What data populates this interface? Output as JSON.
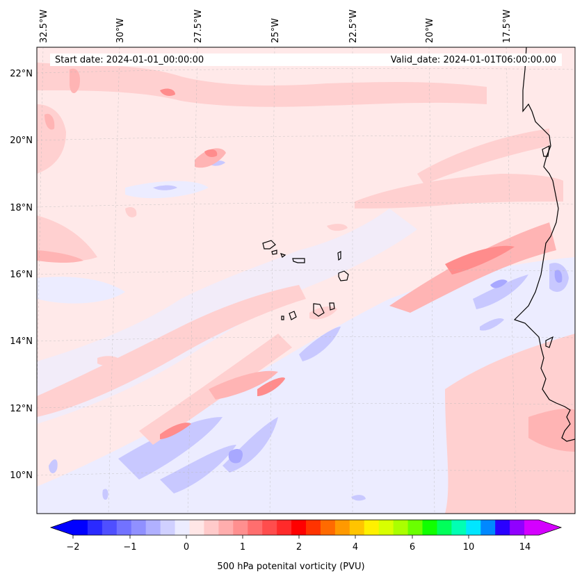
{
  "banner": {
    "start_date": "Start date: 2024-01-01_00:00:00",
    "valid_date": "Valid_date: 2024-01-01T06:00:00.00"
  },
  "lon_labels": [
    "32.5°W",
    "30°W",
    "27.5°W",
    "25°W",
    "22.5°W",
    "20°W",
    "17.5°W"
  ],
  "lat_labels": [
    "22°N",
    "20°N",
    "18°N",
    "16°N",
    "14°N",
    "12°N",
    "10°N"
  ],
  "colorbar": {
    "title": "500 hPa potenital vorticity (PVU)",
    "tick_labels": [
      "−2",
      "−1",
      "0",
      "1",
      "2",
      "4",
      "6",
      "10",
      "14"
    ],
    "colors": [
      "#0000ff",
      "#2a2aff",
      "#4f4fff",
      "#7272ff",
      "#9090ff",
      "#b0b0ff",
      "#d0d0ff",
      "#ececff",
      "#ffe6e6",
      "#ffcaca",
      "#ffadad",
      "#ff8f8f",
      "#ff6e6e",
      "#ff4d4d",
      "#ff2a2a",
      "#ff0000",
      "#ff3300",
      "#ff6a00",
      "#ff9900",
      "#ffc400",
      "#fff000",
      "#d8ff00",
      "#aaff00",
      "#6aff00",
      "#10ff00",
      "#00ff5a",
      "#00ffb4",
      "#00e6ff",
      "#0088ff",
      "#2a00ff",
      "#9000ff",
      "#d400ff"
    ],
    "under_color": "#0000ff",
    "over_color": "#d400ff"
  },
  "map_colors": {
    "background": "#ffe9e9",
    "light_blue": "#ececff",
    "blue": "#c8c8ff",
    "dark_blue": "#a8a8ff",
    "light_red": "#ffd0d0",
    "red": "#ffb4b4",
    "dark_red": "#ff8c8c",
    "coastline": "#000000"
  }
}
